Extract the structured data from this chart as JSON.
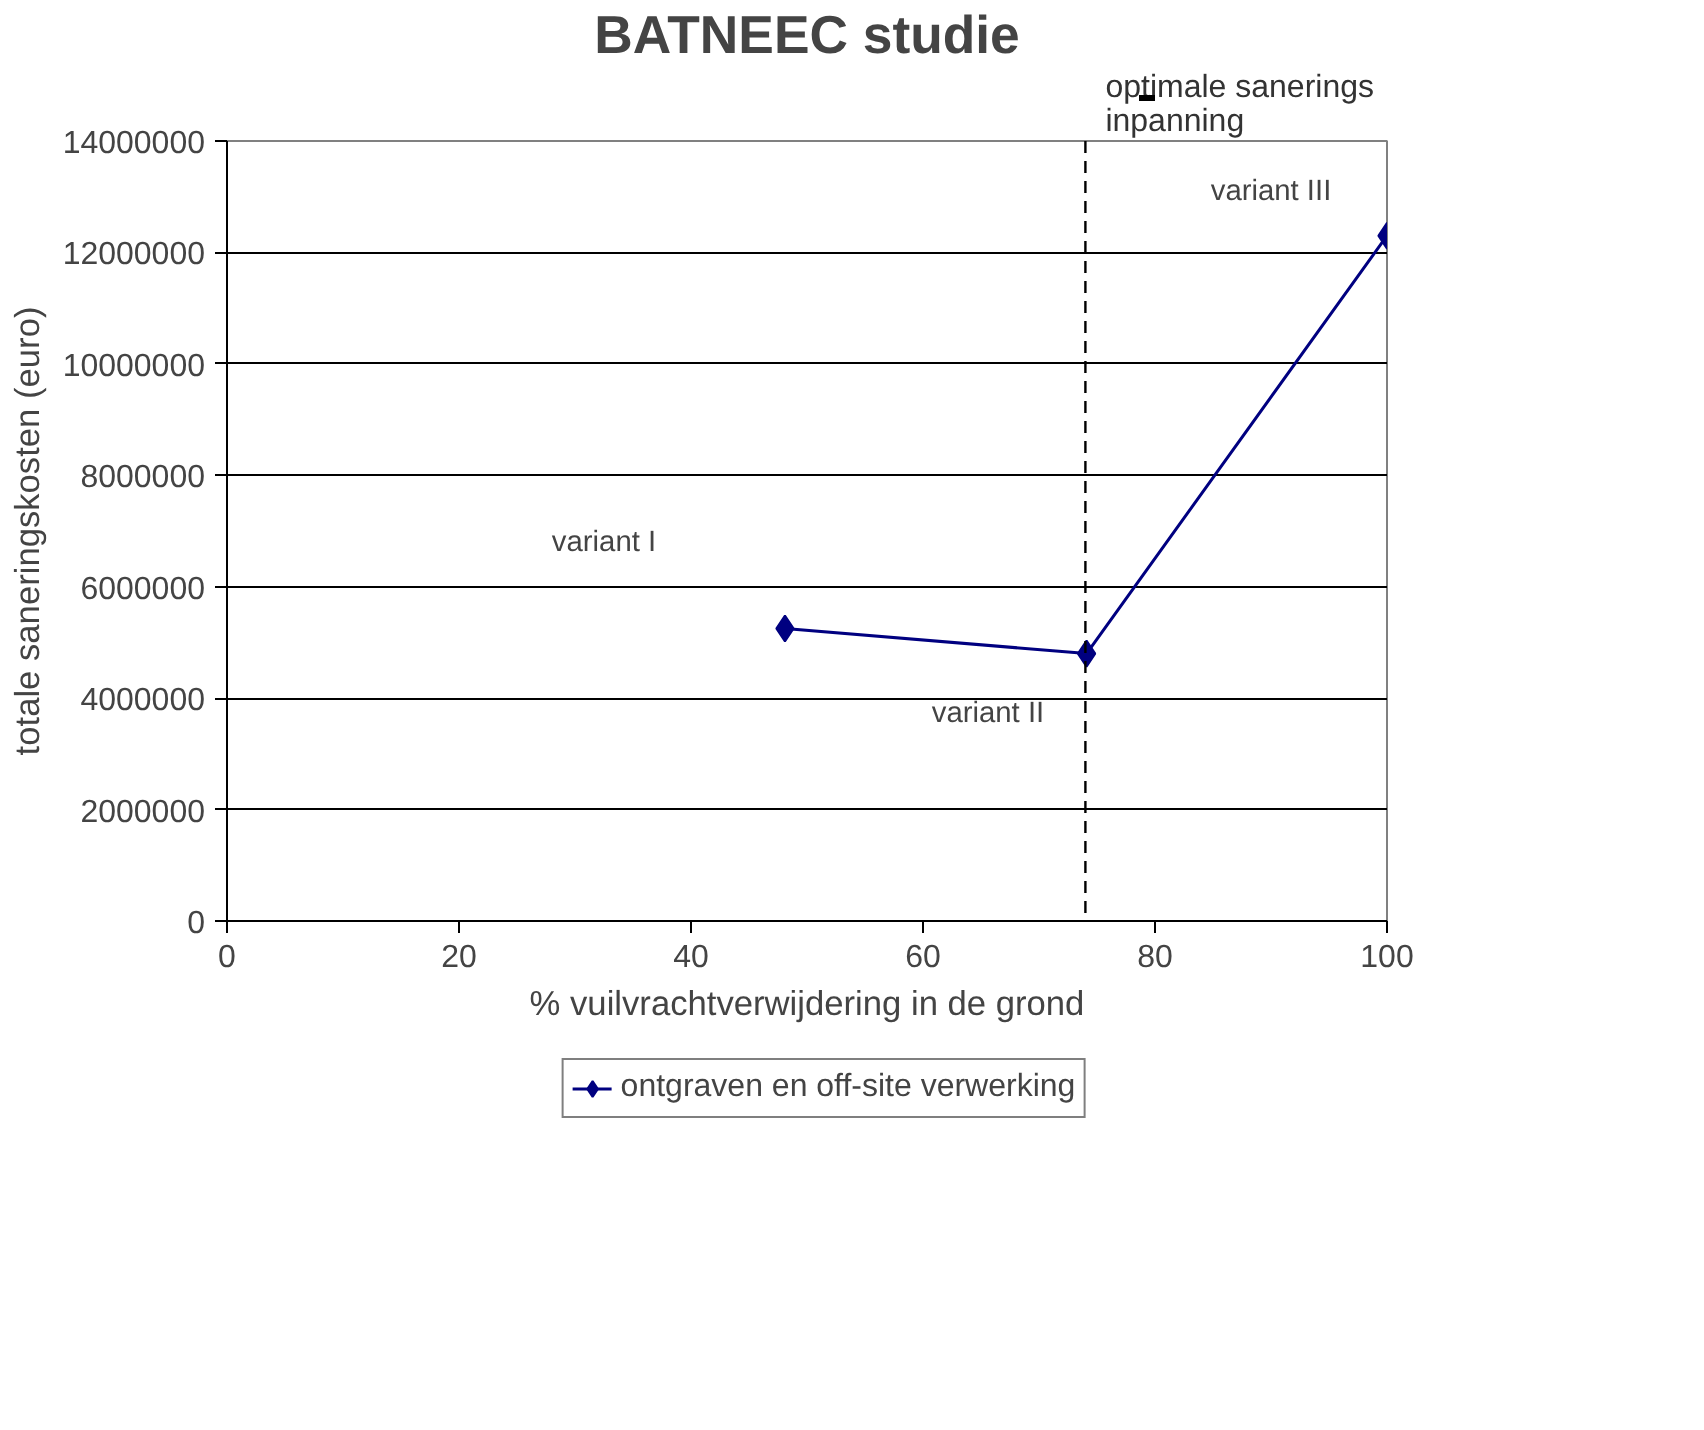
{
  "chart_data": {
    "type": "line",
    "title": "BATNEEC studie",
    "xlabel": "% vuilvrachtverwijdering in de grond",
    "ylabel": "totale saneringskosten (euro)",
    "x": [
      48.1,
      74.1,
      100
    ],
    "series": [
      {
        "name": "ontgraven en off-site verwerking",
        "color": "#000080",
        "values": [
          5250000,
          4800000,
          12300000
        ]
      }
    ],
    "xlim": [
      0,
      100
    ],
    "xticks": [
      0,
      20,
      40,
      60,
      80,
      100
    ],
    "ylim": [
      0,
      14000000
    ],
    "yticks": [
      0,
      2000000,
      4000000,
      6000000,
      8000000,
      10000000,
      12000000,
      14000000
    ],
    "grid": "y",
    "legend": "bottom",
    "marker": "diamond",
    "line_style": "solid",
    "ref_lines": [
      {
        "axis": "x",
        "value": 74,
        "label": "optimale sanerings\ninpanning",
        "line_style": "dashed",
        "color": "#000000"
      }
    ],
    "annotations": [
      "variant I",
      "variant II",
      "variant III"
    ]
  }
}
